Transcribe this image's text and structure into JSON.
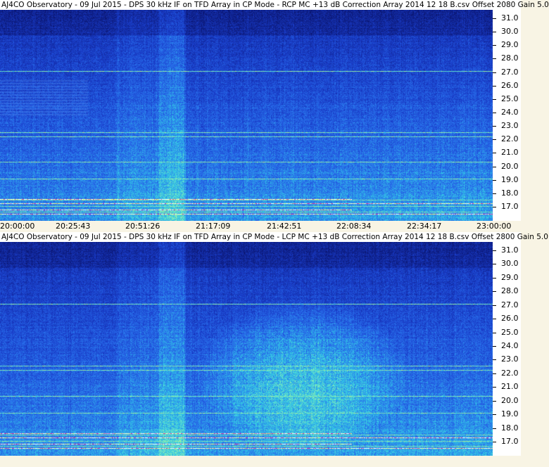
{
  "top_panel": {
    "title": "AJ4CO Observatory - 09 Jul 2015 - DPS 30 kHz IF on TFD Array in CP Mode - RCP  MC +13 dB  Correction Array 2014 12 18 B.csv  Offset 2080   Gain 5.0",
    "freq_labels": [
      "31.0",
      "30.0",
      "29.0",
      "28.0",
      "27.0",
      "26.0",
      "25.0",
      "24.0",
      "23.0",
      "22.0",
      "21.0",
      "20.0",
      "19.0",
      "18.0",
      "17.0"
    ]
  },
  "bottom_panel": {
    "title": "AJ4CO Observatory - 09 Jul 2015 - DPS 30 kHz IF on TFD Array in CP Mode - LCP  MC +13 dB  Correction Array 2014 12 18 B.csv  Offset 2800   Gain 5.0",
    "freq_labels": [
      "31.0",
      "30.0",
      "29.0",
      "28.0",
      "27.0",
      "26.0",
      "25.0",
      "24.0",
      "23.0",
      "22.0",
      "21.0",
      "20.0",
      "19.0",
      "18.0",
      "17.0"
    ]
  },
  "time_axis": {
    "labels": [
      "20:00:00",
      "20:25:43",
      "20:51:26",
      "21:17:09",
      "21:42:51",
      "22:08:34",
      "22:34:17",
      "23:00:00"
    ]
  },
  "colors": {
    "background": "#f8f4e4",
    "spectro_dark": "#1432a8",
    "spectro_mid": "#2a62e0",
    "spectro_bright": "#3fd0e8",
    "spectro_hot": "#e8f040"
  }
}
